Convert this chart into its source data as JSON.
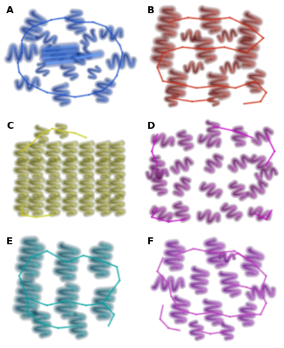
{
  "panels": [
    {
      "label": "A",
      "color_main": [
        30,
        80,
        200
      ],
      "color_dark": [
        0,
        30,
        120
      ],
      "color_light": [
        100,
        160,
        255
      ],
      "row": 0,
      "col": 0,
      "type": "A"
    },
    {
      "label": "B",
      "color_main": [
        200,
        40,
        20
      ],
      "color_dark": [
        80,
        0,
        0
      ],
      "color_light": [
        255,
        120,
        100
      ],
      "row": 0,
      "col": 1,
      "type": "B"
    },
    {
      "label": "C",
      "color_main": [
        200,
        200,
        20
      ],
      "color_dark": [
        80,
        80,
        0
      ],
      "color_light": [
        255,
        255,
        120
      ],
      "row": 1,
      "col": 0,
      "type": "C"
    },
    {
      "label": "D",
      "color_main": [
        200,
        0,
        200
      ],
      "color_dark": [
        80,
        0,
        80
      ],
      "color_light": [
        255,
        120,
        255
      ],
      "row": 1,
      "col": 1,
      "type": "D"
    },
    {
      "label": "E",
      "color_main": [
        0,
        160,
        160
      ],
      "color_dark": [
        0,
        60,
        80
      ],
      "color_light": [
        80,
        220,
        220
      ],
      "row": 2,
      "col": 0,
      "type": "E"
    },
    {
      "label": "F",
      "color_main": [
        190,
        60,
        190
      ],
      "color_dark": [
        90,
        0,
        120
      ],
      "color_light": [
        240,
        140,
        240
      ],
      "row": 2,
      "col": 1,
      "type": "F"
    }
  ],
  "background_color": "#ffffff",
  "label_fontsize": 10,
  "label_fontweight": "bold",
  "figsize": [
    4.09,
    5.0
  ],
  "dpi": 100
}
